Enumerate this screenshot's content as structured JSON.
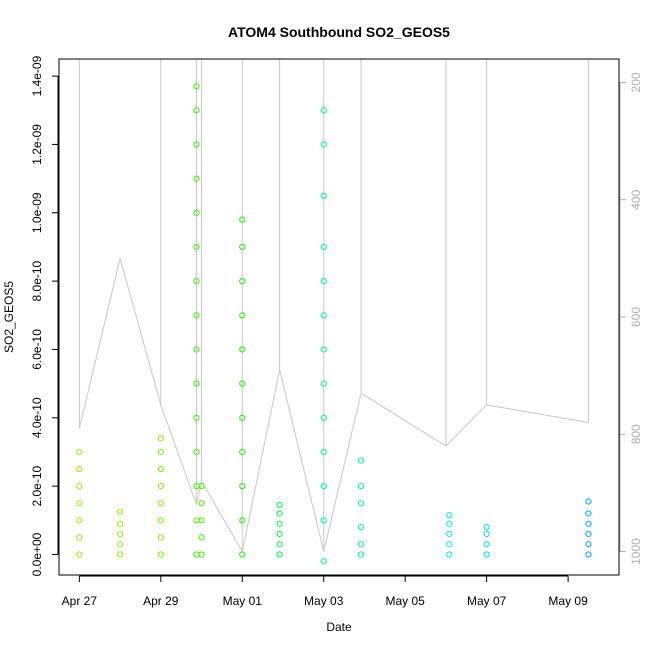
{
  "chart_data": {
    "type": "scatter",
    "title": "ATOM4 Southbound SO2_GEOS5",
    "xlabel": "Date",
    "ylabel": "SO2_GEOS5",
    "xlim": [
      "2018-04-26T12:00",
      "2018-05-10T06:00"
    ],
    "ylim": [
      -6e-11,
      1.45e-09
    ],
    "x_ticks": [
      {
        "label": "Apr 27",
        "date": "2018-04-27"
      },
      {
        "label": "Apr 29",
        "date": "2018-04-29"
      },
      {
        "label": "May 01",
        "date": "2018-05-01"
      },
      {
        "label": "May 03",
        "date": "2018-05-03"
      },
      {
        "label": "May 05",
        "date": "2018-05-05"
      },
      {
        "label": "May 07",
        "date": "2018-05-07"
      },
      {
        "label": "May 09",
        "date": "2018-05-09"
      }
    ],
    "y_ticks": [
      {
        "label": "0.0e+00",
        "value": 0
      },
      {
        "label": "2.0e-10",
        "value": 2e-10
      },
      {
        "label": "4.0e-10",
        "value": 4e-10
      },
      {
        "label": "6.0e-10",
        "value": 6e-10
      },
      {
        "label": "8.0e-10",
        "value": 8e-10
      },
      {
        "label": "1.0e-09",
        "value": 1e-09
      },
      {
        "label": "1.2e-09",
        "value": 1.2e-09
      },
      {
        "label": "1.4e-09",
        "value": 1.4e-09
      }
    ],
    "right_axis": {
      "ylim": [
        1040,
        160
      ],
      "ticks": [
        {
          "label": "200",
          "value": 200
        },
        {
          "label": "400",
          "value": 400
        },
        {
          "label": "600",
          "value": 600
        },
        {
          "label": "800",
          "value": 800
        },
        {
          "label": "1000",
          "value": 1000
        }
      ],
      "color": "#b0b0b0"
    },
    "grid": false,
    "colors": {
      "axis": "#000000",
      "altitude_trace": "#c8c8c8",
      "series_colors": [
        "#8cf000",
        "#78f000",
        "#3cf000",
        "#1ef000",
        "#00f050",
        "#00f0a0",
        "#00f0c8",
        "#00e8f0",
        "#00d8f0",
        "#00a8f8"
      ]
    },
    "series": [
      {
        "x": "2018-04-27T00:00",
        "y": [
          0,
          5e-11,
          1e-10,
          1.5e-10,
          2e-10,
          2.5e-10,
          3e-10
        ],
        "color": "#8cf000"
      },
      {
        "x": "2018-04-28T00:00",
        "y": [
          0,
          3e-11,
          6e-11,
          9e-11,
          1.25e-10
        ],
        "color": "#8cf000"
      },
      {
        "x": "2018-04-29T00:00",
        "y": [
          0,
          5e-11,
          1e-10,
          1.5e-10,
          2e-10,
          2.5e-10,
          3e-10,
          3.4e-10
        ],
        "color": "#78f000"
      },
      {
        "x": "2018-04-29T21:00",
        "y": [
          0,
          1e-10,
          2e-10,
          3e-10,
          4e-10,
          5e-10,
          6e-10,
          7e-10,
          8e-10,
          9e-10,
          1e-09,
          1.1e-09,
          1.2e-09,
          1.3e-09,
          1.37e-09
        ],
        "color": "#3cf000"
      },
      {
        "x": "2018-04-30T00:00",
        "y": [
          0,
          5e-11,
          1e-10,
          1.5e-10,
          2e-10
        ],
        "color": "#3cf000"
      },
      {
        "x": "2018-05-01T00:00",
        "y": [
          0,
          1e-10,
          2e-10,
          3e-10,
          4e-10,
          5e-10,
          6e-10,
          7e-10,
          8e-10,
          9e-10,
          9.8e-10
        ],
        "color": "#1ef000"
      },
      {
        "x": "2018-05-01T22:00",
        "y": [
          0,
          3e-11,
          6e-11,
          9e-11,
          1.2e-10,
          1.45e-10
        ],
        "color": "#00f050"
      },
      {
        "x": "2018-05-03T00:00",
        "y": [
          -2e-11,
          1e-10,
          2e-10,
          3e-10,
          4e-10,
          5e-10,
          6e-10,
          7e-10,
          8e-10,
          9e-10,
          1.05e-09,
          1.2e-09,
          1.3e-09
        ],
        "color": "#00f0a0"
      },
      {
        "x": "2018-05-03T22:00",
        "y": [
          0,
          3e-11,
          8e-11,
          1.5e-10,
          2e-10,
          2.75e-10
        ],
        "color": "#00f0a0"
      },
      {
        "x": "2018-05-06T02:00",
        "y": [
          0,
          3e-11,
          6e-11,
          9e-11,
          1.15e-10
        ],
        "color": "#00e8f0"
      },
      {
        "x": "2018-05-07T00:00",
        "y": [
          0,
          3e-11,
          6e-11,
          8e-11
        ],
        "color": "#00d8f0"
      },
      {
        "x": "2018-05-09T12:00",
        "y": [
          0,
          3e-11,
          6e-11,
          9e-11,
          1.2e-10,
          1.55e-10
        ],
        "color": "#00a8f8"
      }
    ],
    "altitude_trace": [
      {
        "x": "2018-04-27T00:00",
        "top": 160,
        "bottom": 790
      },
      {
        "x": "2018-04-28T00:00",
        "top": 500,
        "bottom": 500
      },
      {
        "x": "2018-04-29T00:00",
        "top": 160,
        "bottom": 750
      },
      {
        "x": "2018-04-29T21:00",
        "top": 160,
        "bottom": 920
      },
      {
        "x": "2018-04-30T00:00",
        "top": 160,
        "bottom": 880
      },
      {
        "x": "2018-05-01T00:00",
        "top": 160,
        "bottom": 1000
      },
      {
        "x": "2018-05-01T22:00",
        "top": 160,
        "bottom": 690
      },
      {
        "x": "2018-05-03T00:00",
        "top": 160,
        "bottom": 1000
      },
      {
        "x": "2018-05-03T22:00",
        "top": 160,
        "bottom": 730
      },
      {
        "x": "2018-05-06T00:00",
        "top": 160,
        "bottom": 820
      },
      {
        "x": "2018-05-07T00:00",
        "top": 160,
        "bottom": 750
      },
      {
        "x": "2018-05-09T12:00",
        "top": 160,
        "bottom": 780
      }
    ]
  }
}
